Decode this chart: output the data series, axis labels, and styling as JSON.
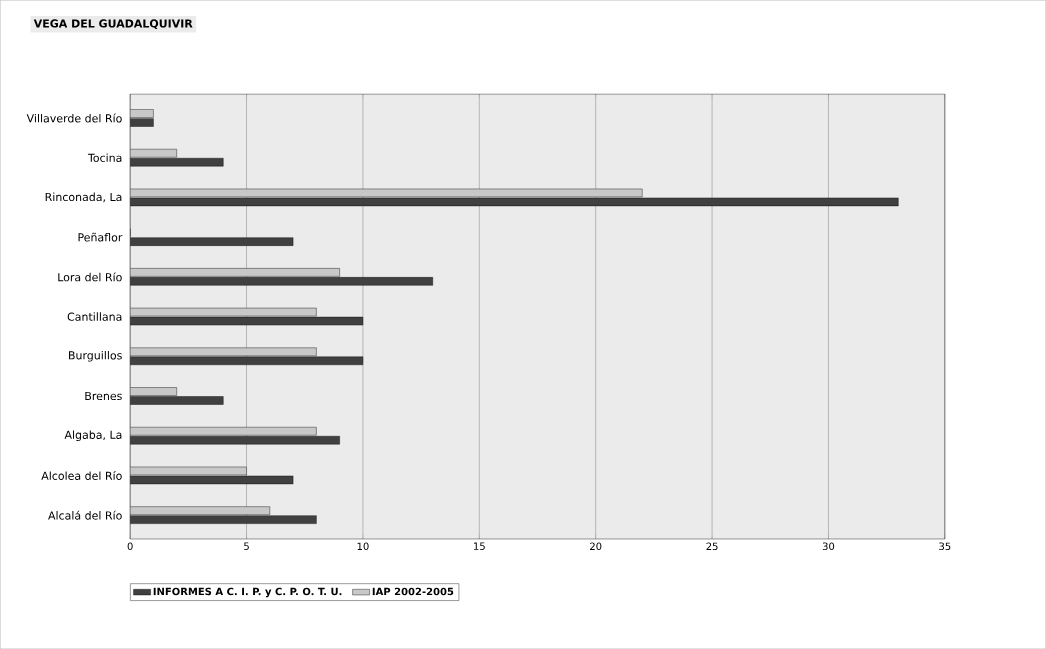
{
  "chart_data": {
    "type": "bar",
    "orientation": "horizontal",
    "title": "VEGA DEL GUADALQUIVIR",
    "categories": [
      "Villaverde del Río",
      "Tocina",
      "Rinconada, La",
      "Peñaflor",
      "Lora del Río",
      "Cantillana",
      "Burguillos",
      "Brenes",
      "Algaba, La",
      "Alcolea del Río",
      "Alcalá del Río"
    ],
    "series": [
      {
        "name": "INFORMES A C. I. P. y C. P. O. T. U.",
        "color": "#404040",
        "values": [
          1,
          4,
          33,
          7,
          13,
          10,
          10,
          4,
          9,
          7,
          8
        ]
      },
      {
        "name": "IAP 2002-2005",
        "color": "#c8c8c8",
        "values": [
          1,
          2,
          22,
          0,
          9,
          8,
          8,
          2,
          8,
          5,
          6
        ]
      }
    ],
    "xlim": [
      0,
      35
    ],
    "xticks": [
      0,
      5,
      10,
      15,
      20,
      25,
      30,
      35
    ],
    "grid": "x",
    "legend": "bottom"
  }
}
